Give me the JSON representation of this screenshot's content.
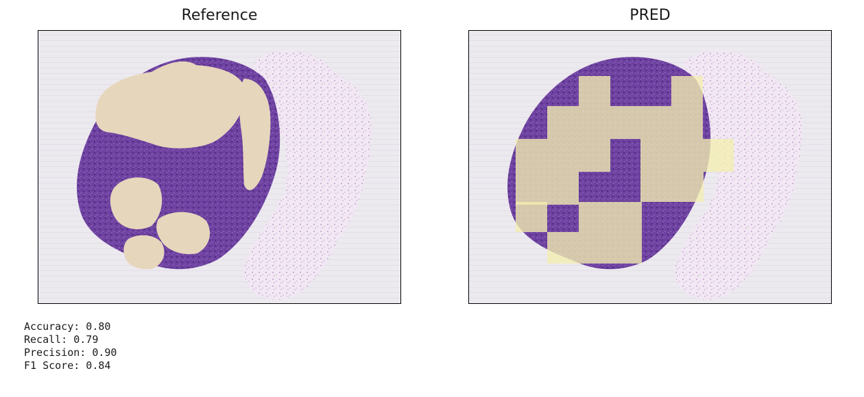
{
  "panels": {
    "reference": {
      "title": "Reference"
    },
    "pred": {
      "title": "PRED"
    }
  },
  "metrics": {
    "accuracy": "Accuracy: 0.80",
    "recall": "Recall: 0.79",
    "precision": "Precision: 0.90",
    "f1": "F1 Score: 0.84"
  },
  "colors": {
    "background": "#eceaf0",
    "tissue_purple": "#6a3f99",
    "tissue_light": "#c9a9d2",
    "mask_tan": "#e6d6bc",
    "pred_yellow": "#f4eeb0"
  }
}
